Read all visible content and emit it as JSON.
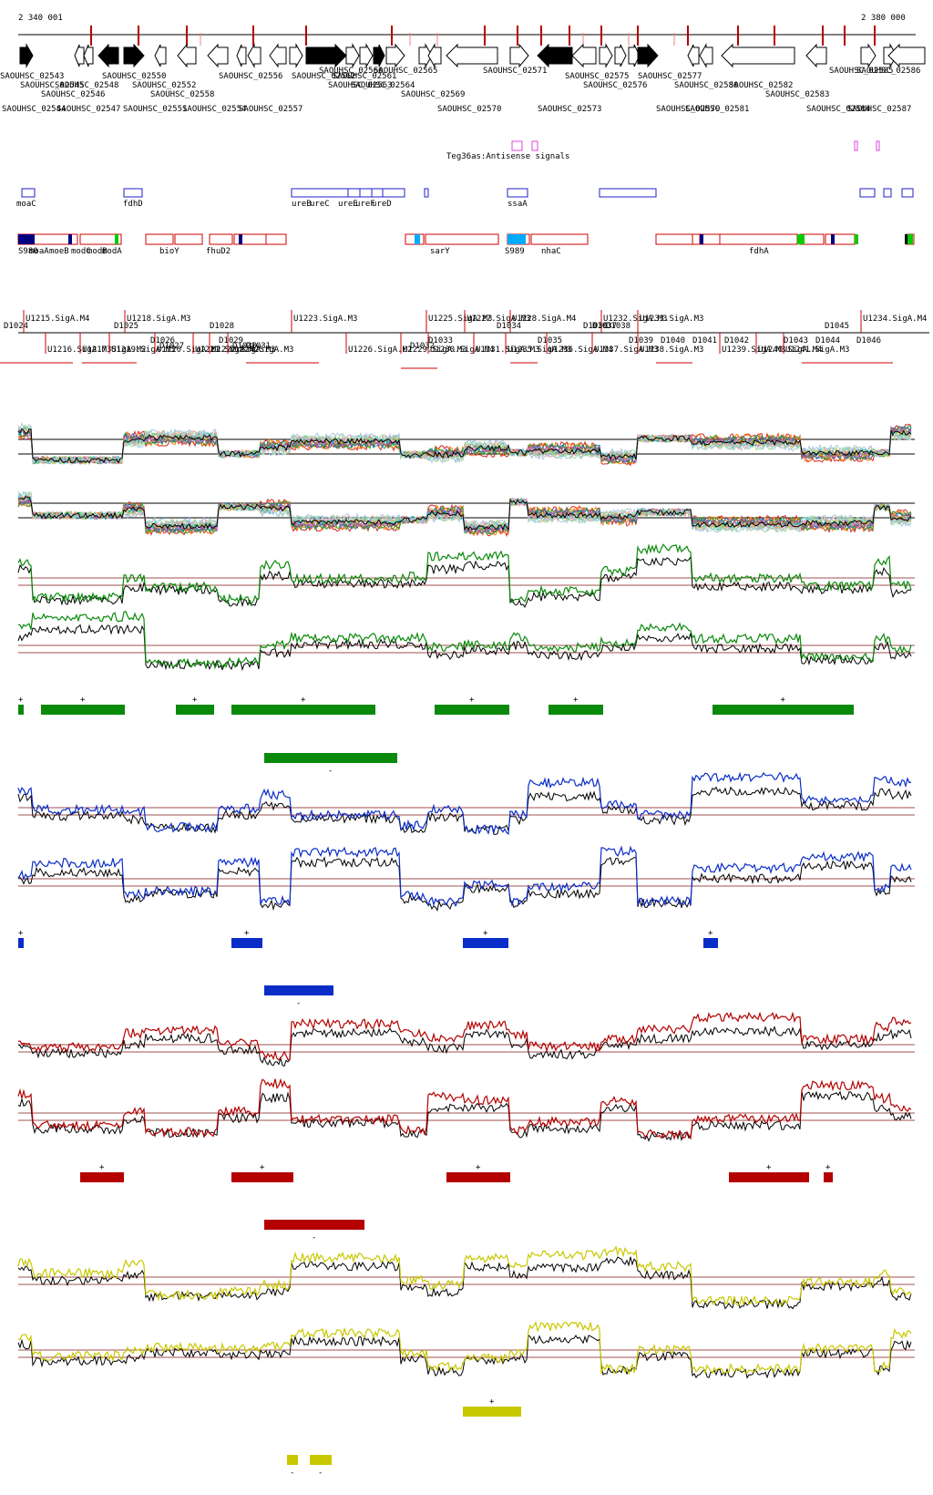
{
  "coords": {
    "start": "2 340 001",
    "end": "2 380 000"
  },
  "genes": {
    "upper_strand": [
      {
        "label": "SAOUHSC_02543"
      },
      {
        "label": "SAOUHSC_02545"
      },
      {
        "label": "SAOUHSC_02546"
      },
      {
        "label": "SAOUHSC_02548"
      },
      {
        "label": "SAOUHSC_02550"
      },
      {
        "label": "SAOUHSC_02552"
      },
      {
        "label": "SAOUHSC_02556"
      },
      {
        "label": "SAOUHSC_02558"
      },
      {
        "label": "SAOUHSC_02562"
      },
      {
        "label": "SAOUHSC_02560"
      },
      {
        "label": "SAOUHSC_02561"
      },
      {
        "label": "SAOUHSC_02563"
      },
      {
        "label": "SAOUHSC_02564"
      },
      {
        "label": "SAOUHSC_02565"
      },
      {
        "label": "SAOUHSC_02569"
      },
      {
        "label": "SAOUHSC_02571"
      },
      {
        "label": "SAOUHSC_02575"
      },
      {
        "label": "SAOUHSC_02576"
      },
      {
        "label": "SAOUHSC_02577"
      },
      {
        "label": "SAOUHSC_02580"
      },
      {
        "label": "SAOUHSC_02582"
      },
      {
        "label": "SAOUHSC_02583"
      },
      {
        "label": "SAOUHSC_02585"
      },
      {
        "label": "SAOUHSC_02586"
      }
    ],
    "lower_row": [
      {
        "label": "SAOUHSC_02544"
      },
      {
        "label": "SAOUHSC_02547"
      },
      {
        "label": "SAOUHSC_02551"
      },
      {
        "label": "SAOUHSC_02554"
      },
      {
        "label": "SAOUHSC_02557"
      },
      {
        "label": "SAOUHSC_02570"
      },
      {
        "label": "SAOUHSC_02573"
      },
      {
        "label": "SAOUHSC_02579"
      },
      {
        "label": "SAOUHSC_02581"
      },
      {
        "label": "SAOUHSC_02584"
      },
      {
        "label": "SAOUHSC_02587"
      }
    ]
  },
  "antisense": {
    "label": "Teg36as:Antisense signals"
  },
  "gene_names": [
    "moaC",
    "fdhD",
    "ureB",
    "ureC",
    "ureE",
    "ureF",
    "ureD",
    "ssaA"
  ],
  "operons": [
    "S980",
    "moaA",
    "moeB",
    "modC",
    "modB",
    "modA",
    "bioY",
    "fhuD2",
    "sarY",
    "S989",
    "nhaC",
    "fdhA"
  ],
  "promoters_top": [
    "U1215.SigA.M4",
    "U1218.SigA.M3",
    "U1223.SigA.M3",
    "U1225.SigA.M3",
    "U1227.SigA.M3",
    "U1228.SigA.M4",
    "U1232.SigA.M3",
    "U1233.SigA.M3",
    "U1234.SigA.M4"
  ],
  "promoters_bottom": [
    "U1216.SigA.M3",
    "U1217.SigA.M2",
    "U1219.SigA.M3",
    "U1220.SigA.M2",
    "U1221.SigA.M2",
    "U1222.SigA.M3",
    "U1224.SigA.M3",
    "U1226.SigA.M2",
    "U1229.SigA.M3",
    "U1230.SigA.M4",
    "U1231.SigA.M3",
    "U1235.SigA.M3",
    "U1236.SigA.M4",
    "U1237.SigA.M3",
    "U1238.SigA.M3",
    "U1239.SigA.M3",
    "U1240.SigA.M4",
    "U1241.SigA.M3"
  ],
  "breakpoints": [
    "D1024",
    "D1025",
    "D1026",
    "D1027",
    "D1028",
    "D1029",
    "D1030",
    "D1031",
    "D1032",
    "D1033",
    "D1034",
    "D1035",
    "D1036",
    "D1037",
    "D1038",
    "D1039",
    "D1040",
    "D1041",
    "D1042",
    "D1043",
    "D1044",
    "D1045",
    "D1046"
  ],
  "tracks": {
    "green": {
      "color": "#0a8a0a",
      "plus": "+",
      "minus": "-"
    },
    "blue": {
      "color": "#0a2dc8",
      "plus": "+",
      "minus": "-"
    },
    "red": {
      "color": "#b40000",
      "plus": "+",
      "minus": "-"
    },
    "yellow": {
      "color": "#c8c800",
      "plus": "+",
      "minus": "-"
    }
  },
  "colors": {
    "gene_outline": "#000000",
    "gene_filled": "#000000",
    "tick": "#b40000",
    "tick_light": "#f08080",
    "antisense": "#e040e0",
    "gene_box": "#2020c8",
    "operon_box": "#d00000",
    "operon_green": "#00cc00",
    "operon_cyan": "#00aaff",
    "operon_navy": "#000080",
    "reference_line": "#a05050",
    "multi": [
      "#d62728",
      "#ff7f0e",
      "#2ca02c",
      "#1f77b4",
      "#9467bd",
      "#8c564b",
      "#e377c2",
      "#bcbd22",
      "#17becf",
      "#ff9896",
      "#98df8a",
      "#aec7e8"
    ]
  }
}
